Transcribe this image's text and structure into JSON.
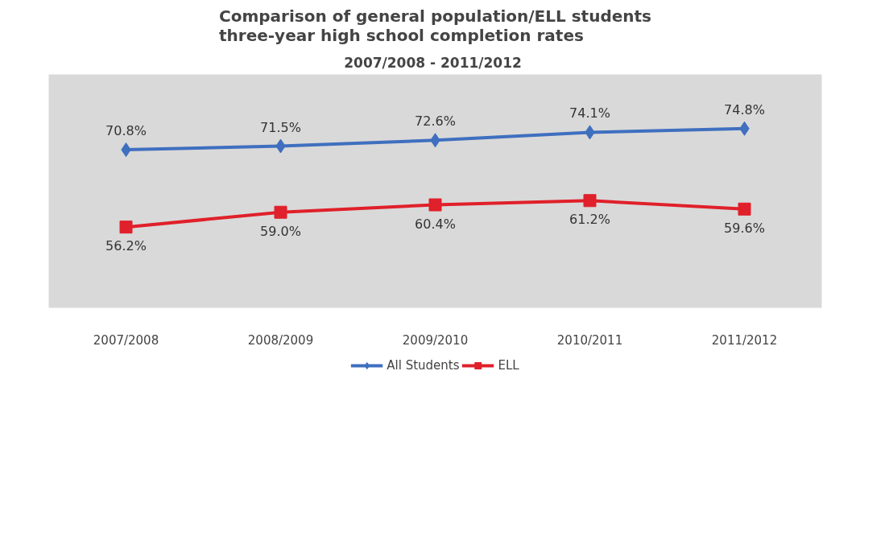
{
  "chart_data": {
    "type": "line",
    "title": "Comparison of general population/ELL students\nthree-year high school completion rates",
    "subtitle": "2007/2008  - 2011/2012",
    "categories": [
      "2007/2008",
      "2008/2009",
      "2009/2010",
      "2010/2011",
      "2011/2012"
    ],
    "series": [
      {
        "name": "All Students",
        "color": "#3f6fbf",
        "marker": "diamond",
        "values": [
          70.8,
          71.5,
          72.6,
          74.1,
          74.8
        ],
        "value_labels": [
          "70.8%",
          "71.5%",
          "72.6%",
          "74.1%",
          "74.8%"
        ]
      },
      {
        "name": "ELL",
        "color": "#e0202a",
        "marker": "square",
        "values": [
          56.2,
          59.0,
          60.4,
          61.2,
          59.6
        ],
        "value_labels": [
          "56.2%",
          "59.0%",
          "60.4%",
          "61.2%",
          "59.6%"
        ]
      }
    ],
    "legend": "bottom",
    "grid": false,
    "line_style": "solid",
    "tick_labels": "x"
  }
}
